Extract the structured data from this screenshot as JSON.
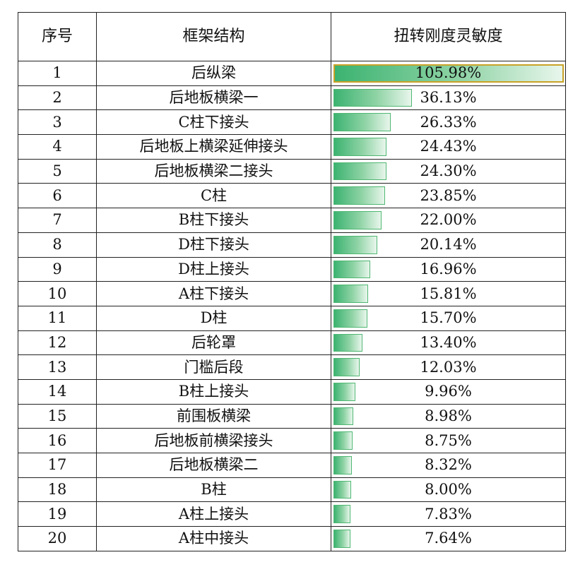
{
  "table": {
    "headers": {
      "index": "序号",
      "structure": "框架结构",
      "sensitivity": "扭转刚度灵敏度"
    },
    "rows": [
      {
        "no": "1",
        "name": "后纵梁",
        "value": "105.98%",
        "pct": 105.98
      },
      {
        "no": "2",
        "name": "后地板横梁一",
        "value": "36.13%",
        "pct": 36.13
      },
      {
        "no": "3",
        "name": "C柱下接头",
        "value": "26.33%",
        "pct": 26.33
      },
      {
        "no": "4",
        "name": "后地板上横梁延伸接头",
        "value": "24.43%",
        "pct": 24.43
      },
      {
        "no": "5",
        "name": "后地板横梁二接头",
        "value": "24.30%",
        "pct": 24.3
      },
      {
        "no": "6",
        "name": "C柱",
        "value": "23.85%",
        "pct": 23.85
      },
      {
        "no": "7",
        "name": "B柱下接头",
        "value": "22.00%",
        "pct": 22.0
      },
      {
        "no": "8",
        "name": "D柱下接头",
        "value": "20.14%",
        "pct": 20.14
      },
      {
        "no": "9",
        "name": "D柱上接头",
        "value": "16.96%",
        "pct": 16.96
      },
      {
        "no": "10",
        "name": "A柱下接头",
        "value": "15.81%",
        "pct": 15.81
      },
      {
        "no": "11",
        "name": "D柱",
        "value": "15.70%",
        "pct": 15.7
      },
      {
        "no": "12",
        "name": "后轮罩",
        "value": "13.40%",
        "pct": 13.4
      },
      {
        "no": "13",
        "name": "门槛后段",
        "value": "12.03%",
        "pct": 12.03
      },
      {
        "no": "14",
        "name": "B柱上接头",
        "value": "9.96%",
        "pct": 9.96
      },
      {
        "no": "15",
        "name": "前围板横梁",
        "value": "8.98%",
        "pct": 8.98
      },
      {
        "no": "16",
        "name": "后地板前横梁接头",
        "value": "8.75%",
        "pct": 8.75
      },
      {
        "no": "17",
        "name": "后地板横梁二",
        "value": "8.32%",
        "pct": 8.32
      },
      {
        "no": "18",
        "name": "B柱",
        "value": "8.00%",
        "pct": 8.0
      },
      {
        "no": "19",
        "name": "A柱上接头",
        "value": "7.83%",
        "pct": 7.83
      },
      {
        "no": "20",
        "name": "A柱中接头",
        "value": "7.64%",
        "pct": 7.64
      }
    ]
  },
  "colors": {
    "bar_start": "#3cb371",
    "bar_end": "#e8f6ec",
    "top_bar_border": "#c9a227"
  }
}
